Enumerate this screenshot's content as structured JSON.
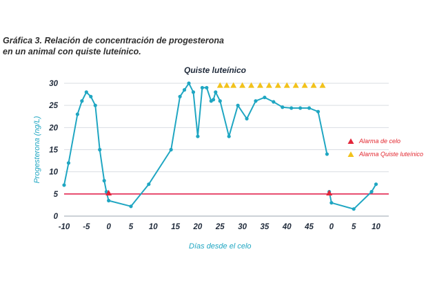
{
  "figure": {
    "caption_line1": "Gráfica 3. Relación de concentración de progesterona",
    "caption_line2": "en un animal con quiste luteínico."
  },
  "chart_data": {
    "type": "line",
    "title": "Quiste luteínico",
    "xlabel": "Días desde el celo",
    "ylabel": "Progesterona (ng/L)",
    "ylim": [
      0,
      30
    ],
    "yticks": [
      0,
      5,
      10,
      15,
      20,
      25,
      30
    ],
    "xtick_labels": [
      "-10",
      "-5",
      "0",
      "5",
      "10",
      "15",
      "20",
      "25",
      "30",
      "35",
      "40",
      "45",
      "0",
      "5",
      "10"
    ],
    "grid": true,
    "colors": {
      "line": "#1fa6c2",
      "threshold": "#e2264f",
      "alarma_celo": "#e2263a",
      "alarma_quiste": "#f2c21b",
      "grid": "#d9dde2"
    },
    "threshold": 5,
    "series": [
      {
        "segment": "ciclo 1",
        "x": [
          -10,
          -9,
          -7,
          -6,
          -5,
          -4,
          -3,
          -2,
          -1,
          -0.5,
          0,
          5,
          9,
          14,
          16,
          17,
          18,
          19,
          20,
          21,
          22,
          23,
          23.5,
          24,
          25,
          27,
          29,
          31,
          33,
          35,
          37,
          39,
          41,
          43,
          45,
          47,
          49
        ],
        "y": [
          7,
          12,
          23,
          26,
          28,
          27,
          25,
          15,
          8,
          5.5,
          3.5,
          2.2,
          7.2,
          15,
          27,
          28.5,
          30,
          28,
          18,
          29,
          29,
          26,
          26.3,
          28,
          26,
          18,
          25,
          22,
          26,
          26.8,
          25.8,
          24.6,
          24.4,
          24.4,
          24.4,
          23.6,
          14
        ]
      },
      {
        "segment": "ciclo 2",
        "x": [
          49.5,
          50,
          55,
          59,
          60
        ],
        "y": [
          5.5,
          3,
          1.6,
          5.5,
          7.2
        ]
      }
    ],
    "markers": [
      {
        "name": "Alarma de celo",
        "shape": "triangle",
        "x": [
          0,
          49.5
        ],
        "y": [
          5.3,
          5.3
        ]
      },
      {
        "name": "Alarma Quiste luteínico",
        "shape": "triangle",
        "x": [
          25,
          26.5,
          28,
          30,
          32,
          34,
          36,
          38,
          40,
          42,
          44,
          46,
          48
        ],
        "y": [
          29.6,
          29.6,
          29.6,
          29.6,
          29.6,
          29.6,
          29.6,
          29.6,
          29.6,
          29.6,
          29.6,
          29.6,
          29.6
        ]
      }
    ],
    "legend": {
      "position": "right",
      "entries": [
        "Alarma de celo",
        "Alarma Quiste luteínico"
      ]
    }
  }
}
